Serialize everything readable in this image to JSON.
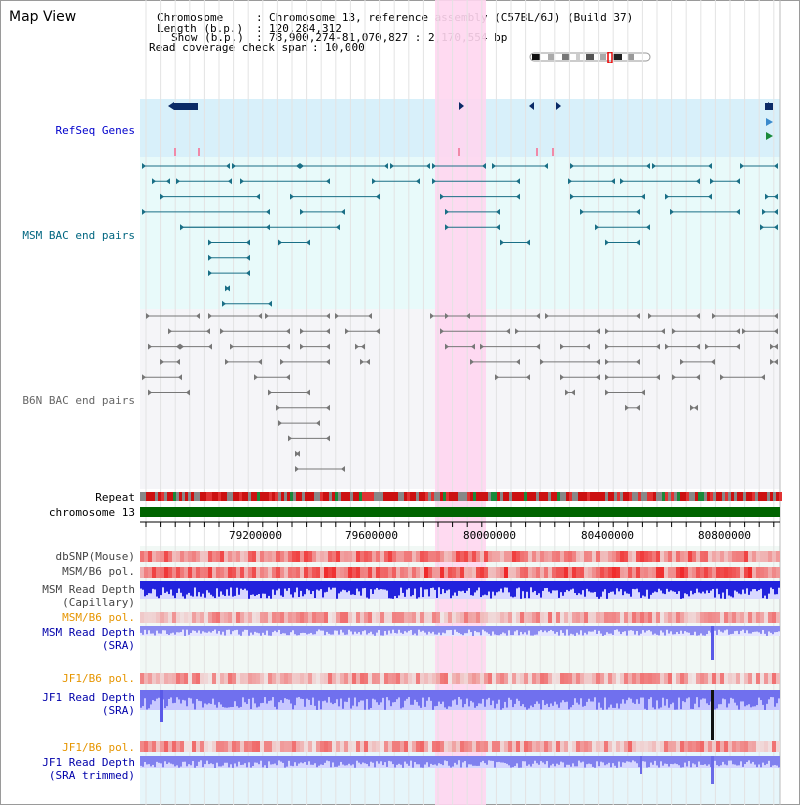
{
  "title": "Map View",
  "info": {
    "chromosome_key": "Chromosome",
    "chromosome_value": "Chromosome 13, reference assembly (C57BL/6J) (Build 37)",
    "length_key": "Length (b.p.)",
    "length_value": "120,284,312",
    "show_key": "Show (b.p.)",
    "show_value": "78,900,274-81,070,827 : 2,170,554 bp",
    "span_key": "Read coverage check span",
    "span_value": "10,000"
  },
  "tracks": {
    "refseq": "RefSeq Genes",
    "msm_bac": "MSM BAC end pairs",
    "b6n_bac": "B6N BAC end pairs",
    "repeat": "Repeat",
    "chromosome": "chromosome 13",
    "dbsnp": "dbSNP(Mouse)",
    "msm_b6_pol_1": "MSM/B6 pol.",
    "msm_depth_cap_1": "MSM Read Depth",
    "msm_depth_cap_2": "(Capillary)",
    "msm_b6_pol_2": "MSM/B6 pol.",
    "msm_depth_sra_1": "MSM Read Depth",
    "msm_depth_sra_2": "(SRA)",
    "jf1_b6_pol_1": "JF1/B6 pol.",
    "jf1_depth_sra_1": "JF1 Read Depth",
    "jf1_depth_sra_2": "(SRA)",
    "jf1_b6_pol_2": "JF1/B6 pol.",
    "jf1_depth_trim_1": "JF1 Read Depth",
    "jf1_depth_trim_2": "(SRA trimmed)"
  },
  "axis_ticks": [
    "79200000",
    "79600000",
    "80000000",
    "80400000",
    "80800000"
  ],
  "colors": {
    "refseq_label": "#0000cc",
    "msm_label": "#006680",
    "b6n_label": "#666666",
    "orange_label": "#e69500",
    "blue_label": "#0000aa",
    "highlight": "#ffd6f0",
    "chromosome_bar": "#006400",
    "depth_blue": "#3333ee"
  }
}
